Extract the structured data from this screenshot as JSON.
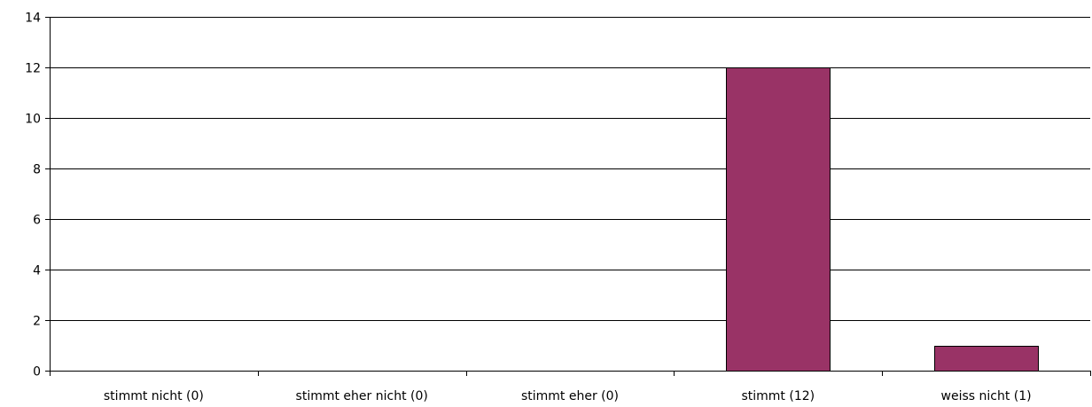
{
  "chart_data": {
    "type": "bar",
    "title": "",
    "xlabel": "",
    "ylabel": "",
    "categories": [
      "stimmt nicht (0)",
      "stimmt eher nicht (0)",
      "stimmt eher (0)",
      "stimmt  (12)",
      "weiss nicht (1)"
    ],
    "values": [
      0,
      0,
      0,
      12,
      1
    ],
    "ylim": [
      0,
      14
    ],
    "yticks": [
      0,
      2,
      4,
      6,
      8,
      10,
      12,
      14
    ],
    "ytick_labels": [
      "0",
      "2",
      "4",
      "6",
      "8",
      "10",
      "12",
      "14"
    ],
    "grid": "horizontal",
    "legend": "none",
    "bar_color": "#993366"
  }
}
